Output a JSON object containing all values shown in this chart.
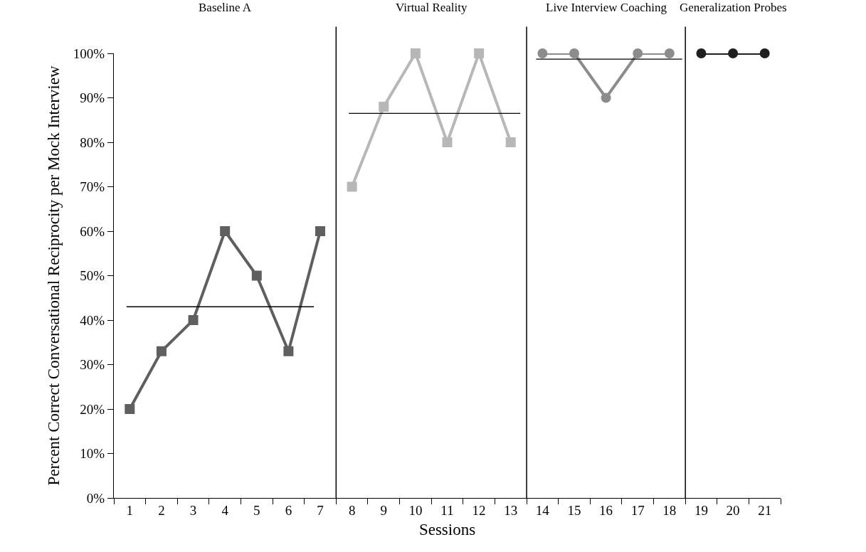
{
  "chart_data": {
    "type": "line",
    "xlabel": "Sessions",
    "ylabel": "Percent Correct Conversational Reciprocity per Mock Interview",
    "xlim": [
      0.5,
      21.5
    ],
    "xticks": [
      {
        "value": 0.5,
        "label": null
      },
      1,
      {
        "value": 1.5,
        "label": null
      },
      2,
      {
        "value": 2.5,
        "label": null
      },
      3,
      {
        "value": 3.5,
        "label": null
      },
      4,
      {
        "value": 4.5,
        "label": null
      },
      5,
      {
        "value": 5.5,
        "label": null
      },
      6,
      {
        "value": 6.5,
        "label": null
      },
      7,
      {
        "value": 7.5,
        "label": null
      },
      8,
      {
        "value": 8.5,
        "label": null
      },
      9,
      {
        "value": 9.5,
        "label": null
      },
      10,
      {
        "value": 10.5,
        "label": null
      },
      11,
      {
        "value": 11.5,
        "label": null
      },
      12,
      {
        "value": 12.5,
        "label": null
      },
      13,
      {
        "value": 13.5,
        "label": null
      },
      14,
      {
        "value": 14.5,
        "label": null
      },
      15,
      {
        "value": 15.5,
        "label": null
      },
      16,
      {
        "value": 16.5,
        "label": null
      },
      17,
      {
        "value": 17.5,
        "label": null
      },
      18,
      {
        "value": 18.5,
        "label": null
      },
      19,
      {
        "value": 19.5,
        "label": null
      },
      20,
      {
        "value": 20.5,
        "label": null
      },
      21,
      {
        "value": 21.5,
        "label": null
      }
    ],
    "ylim": [
      0,
      100
    ],
    "yticks": [
      {
        "value": 0,
        "label": "0%"
      },
      {
        "value": 10,
        "label": "10%"
      },
      {
        "value": 20,
        "label": "20%"
      },
      {
        "value": 30,
        "label": "30%"
      },
      {
        "value": 40,
        "label": "40%"
      },
      {
        "value": 50,
        "label": "50%"
      },
      {
        "value": 60,
        "label": "60%"
      },
      {
        "value": 70,
        "label": "70%"
      },
      {
        "value": 80,
        "label": "80%"
      },
      {
        "value": 90,
        "label": "90%"
      },
      {
        "value": 100,
        "label": "100%"
      }
    ],
    "series": [
      {
        "color": "#5f5f5f",
        "marker": "square",
        "x": [
          1,
          2,
          3,
          4,
          5,
          6,
          7
        ],
        "values": [
          20,
          33,
          40,
          60,
          50,
          33,
          60
        ]
      },
      {
        "color": "#b7b7b7",
        "marker": "square",
        "x": [
          8,
          9,
          10,
          11,
          12,
          13
        ],
        "values": [
          70,
          88,
          100,
          80,
          100,
          80
        ]
      },
      {
        "color": "#8c8c8c",
        "marker": "circle",
        "x": [
          14,
          15,
          16,
          17,
          18
        ],
        "values": [
          100,
          100,
          90,
          100,
          100
        ]
      },
      {
        "color": "#1f1f1f",
        "marker": "circle",
        "x": [
          19,
          20,
          21
        ],
        "values": [
          100,
          100,
          100
        ]
      },
      {
        "color": "#000000",
        "marker": "none",
        "x": [
          0.9,
          6.8
        ],
        "values": [
          43,
          43
        ]
      },
      {
        "color": "#000000",
        "marker": "none",
        "x": [
          7.9,
          13.3
        ],
        "values": [
          86.5,
          86.5
        ]
      },
      {
        "color": "#000000",
        "marker": "none",
        "x": [
          13.8,
          18.4
        ],
        "values": [
          98.7,
          98.7
        ]
      }
    ],
    "ref_lines": [
      {
        "axis": "x",
        "value": 7.5,
        "color": "#000000"
      },
      {
        "axis": "x",
        "value": 13.5,
        "color": "#000000"
      },
      {
        "axis": "x",
        "value": 18.5,
        "color": "#000000"
      }
    ],
    "annotations": [
      "Baseline A",
      "Virtual Reality",
      "Live Interview Coaching",
      "Generalization Probes"
    ]
  }
}
